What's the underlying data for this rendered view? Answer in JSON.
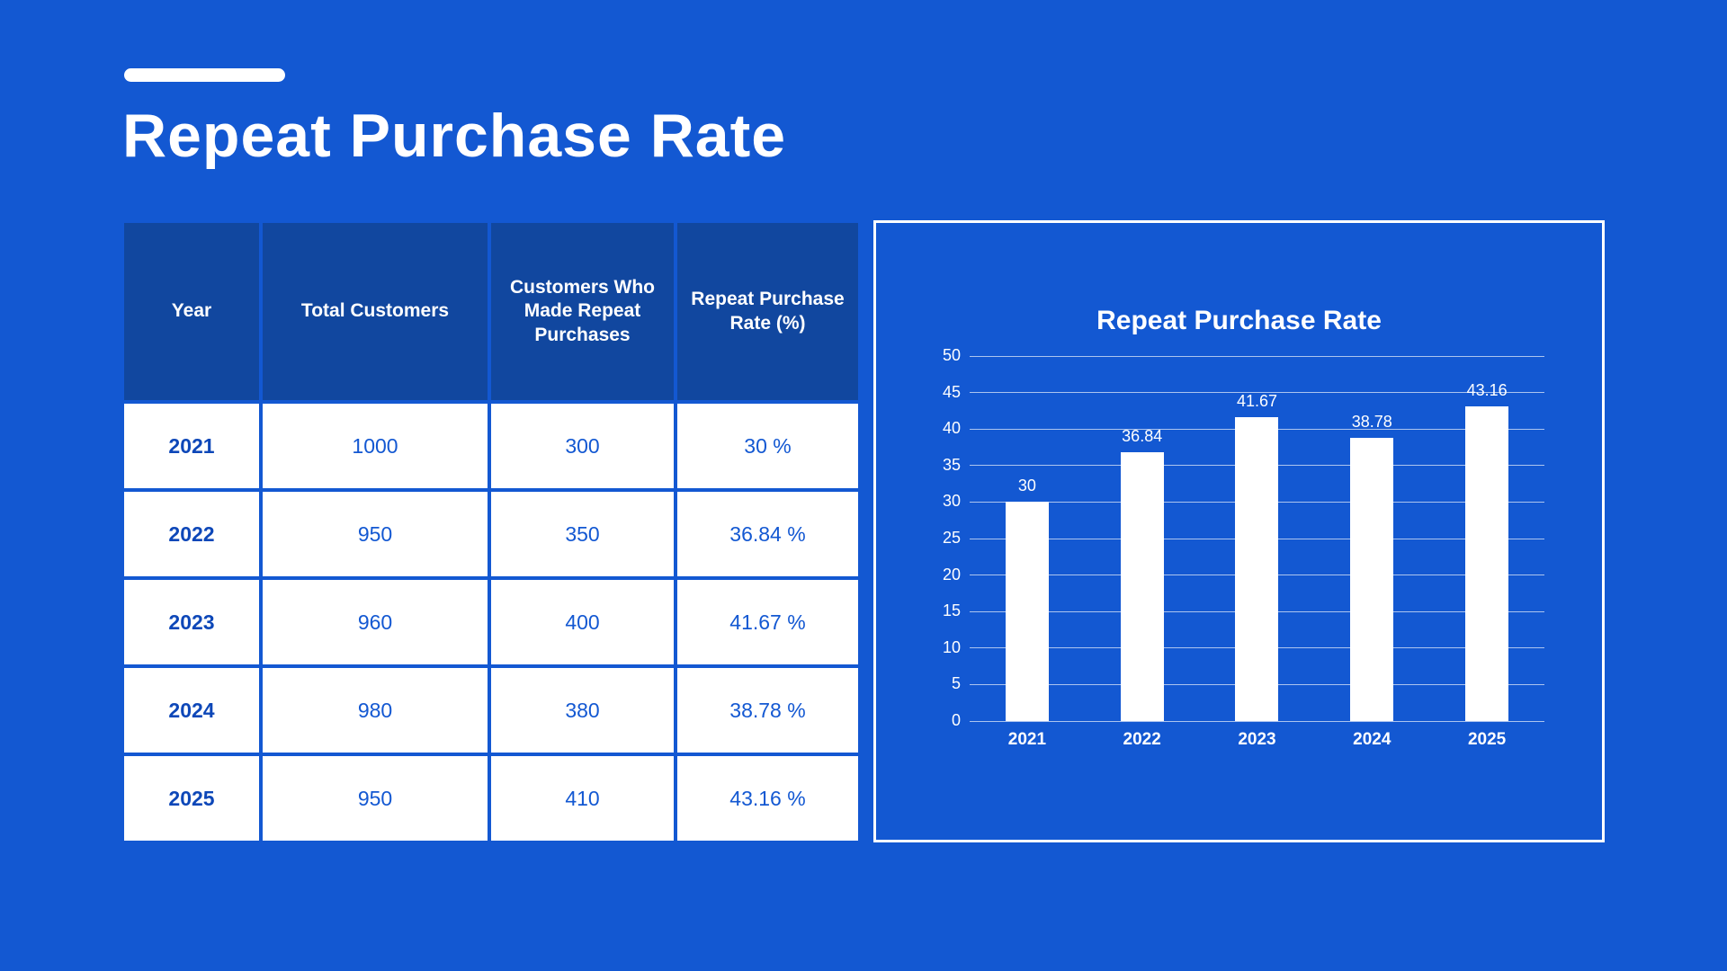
{
  "page": {
    "title": "Repeat Purchase Rate"
  },
  "colors": {
    "background": "#1358d2",
    "table_header_bg": "#11479f",
    "table_body_text": "#1358d2",
    "year_text": "#0d47b8",
    "bar_color": "#ffffff",
    "gridline": "rgba(255,255,255,0.65)"
  },
  "table": {
    "headers": [
      "Year",
      "Total Customers",
      "Customers Who Made Repeat Purchases",
      "Repeat Purchase Rate (%)"
    ],
    "rows": [
      [
        "2021",
        "1000",
        "300",
        "30 %"
      ],
      [
        "2022",
        "950",
        "350",
        "36.84 %"
      ],
      [
        "2023",
        "960",
        "400",
        "41.67 %"
      ],
      [
        "2024",
        "980",
        "380",
        "38.78 %"
      ],
      [
        "2025",
        "950",
        "410",
        "43.16 %"
      ]
    ]
  },
  "chart_data": {
    "type": "bar",
    "title": "Repeat Purchase Rate",
    "categories": [
      "2021",
      "2022",
      "2023",
      "2024",
      "2025"
    ],
    "values": [
      30,
      36.84,
      41.67,
      38.78,
      43.16
    ],
    "value_labels": [
      "30",
      "36.84",
      "41.67",
      "38.78",
      "43.16"
    ],
    "xlabel": "",
    "ylabel": "",
    "ylim": [
      0,
      50
    ],
    "ytick_step": 5,
    "grid": true,
    "legend": false,
    "bar_color": "#ffffff"
  }
}
